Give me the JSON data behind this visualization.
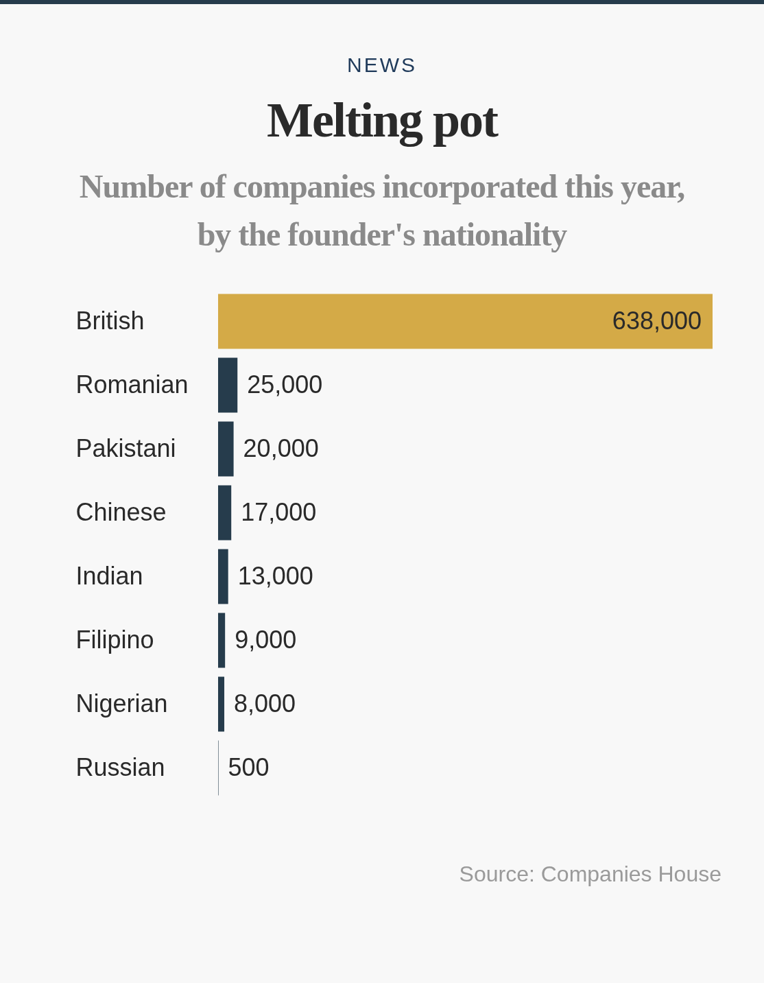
{
  "chart_data": {
    "type": "bar",
    "orientation": "horizontal",
    "title": "Melting pot",
    "subtitle": "Number of companies incorporated this year, by the founder's nationality",
    "categories": [
      "British",
      "Romanian",
      "Pakistani",
      "Chinese",
      "Indian",
      "Filipino",
      "Nigerian",
      "Russian"
    ],
    "values": [
      638000,
      25000,
      20000,
      17000,
      13000,
      9000,
      8000,
      500
    ],
    "colors": [
      "#d4aa47",
      "#263c4c",
      "#263c4c",
      "#263c4c",
      "#263c4c",
      "#263c4c",
      "#263c4c",
      "#263c4c"
    ],
    "value_labels": [
      "638,000",
      "25,000",
      "20,000",
      "17,000",
      "13,000",
      "9,000",
      "8,000",
      "500"
    ],
    "annotations": [
      "NEWS",
      "Source: Companies House"
    ]
  }
}
